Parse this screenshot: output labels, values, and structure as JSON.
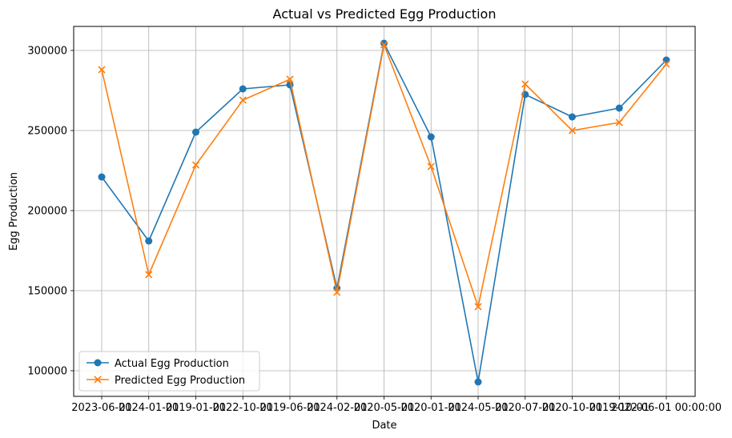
{
  "chart_data": {
    "type": "line",
    "title": "Actual vs Predicted Egg Production",
    "xlabel": "Date",
    "ylabel": "Egg Production",
    "x_tick_labels": [
      "2023-06-01",
      "2024-01-01",
      "2019-01-01",
      "2022-10-01",
      "2019-06-01",
      "2024-02-01",
      "2020-05-01",
      "2020-01-01",
      "2024-05-01",
      "2020-07-01",
      "2020-10-01",
      "2019-10-01",
      "2022-06-01 00:00:00"
    ],
    "y_tick_labels": [
      "100000",
      "150000",
      "200000",
      "250000",
      "300000"
    ],
    "y_ticks": [
      100000,
      150000,
      200000,
      250000,
      300000
    ],
    "ylim": [
      84000,
      315000
    ],
    "grid": true,
    "legend_position": "lower-left",
    "series": [
      {
        "name": "Actual Egg Production",
        "color": "#1f77b4",
        "marker": "circle",
        "values": [
          221000,
          181000,
          249000,
          276000,
          278500,
          151500,
          304500,
          246000,
          93000,
          272500,
          258500,
          264000,
          294000
        ]
      },
      {
        "name": "Predicted Egg Production",
        "color": "#ff7f0e",
        "marker": "x",
        "values": [
          288000,
          160000,
          228500,
          269000,
          282000,
          149000,
          303500,
          227500,
          140000,
          279000,
          250000,
          255000,
          291500
        ]
      }
    ]
  }
}
